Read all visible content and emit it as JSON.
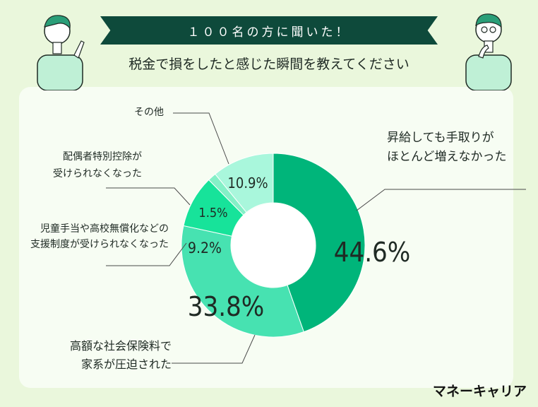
{
  "header": {
    "banner": "１００名の方に聞いた！",
    "question": "税金で損をしたと感じた瞬間を教えてください"
  },
  "brand": "マネーキャリア",
  "colors": {
    "banner_bg": "#0e4a3b",
    "slice_1": "#00b57a",
    "slice_2": "#47e2b1",
    "slice_3": "#17e39a",
    "slice_4": "#84f0c7",
    "slice_5": "#a9f7dc"
  },
  "chart_data": {
    "type": "pie",
    "title": "",
    "categories": [
      "昇給しても手取りがほとんど増えなかった",
      "高額な社会保険料で家系が圧迫された",
      "児童手当や高校無償化などの支援制度が受けられなくなった",
      "配偶者特別控除が受けられなくなった",
      "その他"
    ],
    "values": [
      44.6,
      33.8,
      9.2,
      1.5,
      10.9
    ],
    "value_labels": [
      "44.6%",
      "33.8%",
      "9.2%",
      "1.5%",
      "10.9%"
    ],
    "label_lines": [
      [
        "昇給しても手取りが",
        "ほとんど増えなかった"
      ],
      [
        "高額な社会保険料で",
        "家系が圧迫された"
      ],
      [
        "児童手当や高校無償化などの",
        "支援制度が受けられなくなった"
      ],
      [
        "配偶者特別控除が",
        "受けられなくなった"
      ],
      [
        "その他"
      ]
    ],
    "style": "donut"
  }
}
